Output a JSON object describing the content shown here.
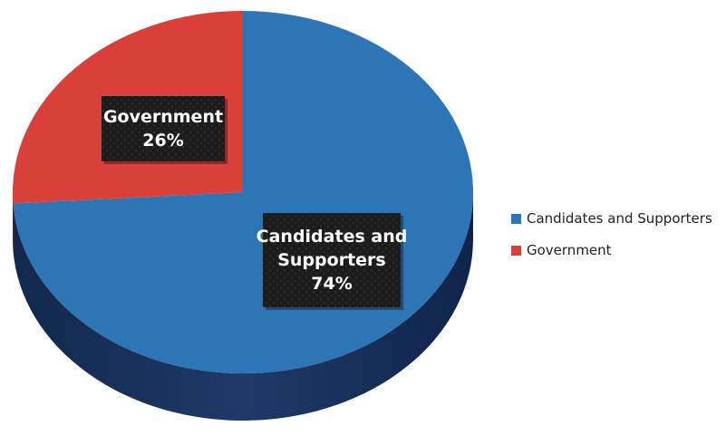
{
  "chart_data": {
    "type": "pie",
    "title": "",
    "slices": [
      {
        "label": "Candidates and Supporters",
        "value": 74,
        "value_label": "74%",
        "color": "#2e75b6",
        "side_color": "#1f3a68"
      },
      {
        "label": "Government",
        "value": 26,
        "value_label": "26%",
        "color": "#d9403a",
        "side_color": "#8e2a26"
      }
    ],
    "legend": {
      "placement": "right",
      "items": [
        {
          "label": "Candidates and Supporters",
          "color": "#2e75b6"
        },
        {
          "label": "Government",
          "color": "#d9403a"
        }
      ]
    },
    "data_labels": {
      "style": "dark textured box, white bold text",
      "lines": [
        [
          "Candidates and",
          "Supporters",
          "74%"
        ],
        [
          "Government",
          "26%"
        ]
      ]
    }
  }
}
